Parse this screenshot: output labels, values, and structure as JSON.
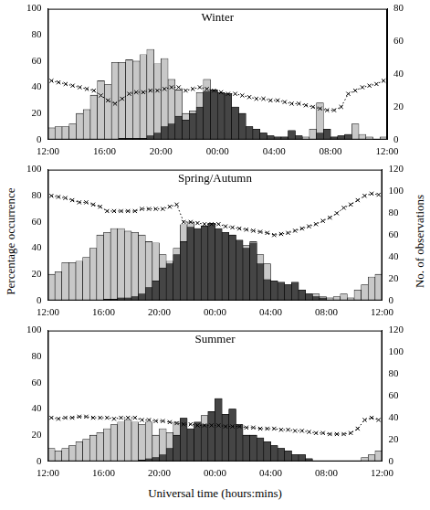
{
  "figure": {
    "ylabel": "Percentage occurrence",
    "y2label": "No. of observations",
    "xlabel": "Universal time (hours:mins)"
  },
  "chart_data": [
    {
      "type": "bar",
      "title": "Winter",
      "grid": false,
      "x": [
        12.25,
        12.75,
        13.25,
        13.75,
        14.25,
        14.75,
        15.25,
        15.75,
        16.25,
        16.75,
        17.25,
        17.75,
        18.25,
        18.75,
        19.25,
        19.75,
        20.25,
        20.75,
        21.25,
        21.75,
        22.25,
        22.75,
        23.25,
        23.75,
        24.25,
        24.75,
        25.25,
        25.75,
        26.25,
        26.75,
        27.25,
        27.75,
        28.25,
        28.75,
        29.25,
        29.75,
        30.25,
        30.75,
        31.25,
        31.75,
        32.25,
        32.75,
        33.25,
        33.75,
        34.25,
        34.75,
        35.25,
        35.75
      ],
      "xlim": [
        12,
        36
      ],
      "xticks": [
        {
          "value": 12,
          "label": "12:00"
        },
        {
          "value": 16,
          "label": "16:00"
        },
        {
          "value": 20,
          "label": "20:00"
        },
        {
          "value": 24,
          "label": "00:00"
        },
        {
          "value": 28,
          "label": "04:00"
        },
        {
          "value": 32,
          "label": "08:00"
        },
        {
          "value": 36,
          "label": "12:00"
        }
      ],
      "ylim": [
        0,
        100
      ],
      "yticks": [
        0,
        20,
        40,
        60,
        80,
        100
      ],
      "y2lim": [
        0,
        80
      ],
      "y2ticks": [
        0,
        20,
        40,
        60,
        80
      ],
      "series": [
        {
          "type": "line",
          "axis": "y2",
          "color": "#000000",
          "marker": "crossRot",
          "line_style": "dotted",
          "values": [
            36,
            35,
            34,
            33,
            32,
            31,
            30,
            27,
            24,
            22,
            25,
            28,
            29,
            29,
            30,
            30,
            31,
            32,
            32,
            30,
            31,
            32,
            31,
            30,
            29,
            28,
            28,
            27,
            26,
            25,
            25,
            24,
            24,
            23,
            22,
            22,
            21,
            20,
            19,
            18,
            18,
            20,
            28,
            30,
            32,
            33,
            34,
            36
          ]
        },
        {
          "type": "bar",
          "color": "#454545",
          "values": [
            0,
            0,
            0,
            0,
            0,
            0,
            0,
            0,
            0,
            0,
            1,
            1,
            1,
            1,
            3,
            5,
            10,
            12,
            18,
            15,
            20,
            25,
            37,
            38,
            36,
            35,
            25,
            20,
            10,
            8,
            5,
            3,
            2,
            2,
            7,
            3,
            0,
            0,
            5,
            8,
            2,
            3,
            4,
            0,
            0,
            0,
            0,
            0
          ]
        },
        {
          "type": "bar",
          "color": "#c8c8c8",
          "values": [
            9,
            10,
            10,
            12,
            20,
            23,
            34,
            45,
            42,
            59,
            59,
            61,
            60,
            65,
            69,
            58,
            62,
            46,
            38,
            20,
            22,
            36,
            46,
            38,
            36,
            35,
            25,
            20,
            10,
            8,
            5,
            3,
            2,
            2,
            7,
            3,
            2,
            8,
            28,
            8,
            2,
            3,
            4,
            12,
            4,
            2,
            0,
            2
          ]
        }
      ]
    },
    {
      "type": "bar",
      "title": "Spring/Autumn",
      "grid": false,
      "x": [
        12.25,
        12.75,
        13.25,
        13.75,
        14.25,
        14.75,
        15.25,
        15.75,
        16.25,
        16.75,
        17.25,
        17.75,
        18.25,
        18.75,
        19.25,
        19.75,
        20.25,
        20.75,
        21.25,
        21.75,
        22.25,
        22.75,
        23.25,
        23.75,
        24.25,
        24.75,
        25.25,
        25.75,
        26.25,
        26.75,
        27.25,
        27.75,
        28.25,
        28.75,
        29.25,
        29.75,
        30.25,
        30.75,
        31.25,
        31.75,
        32.25,
        32.75,
        33.25,
        33.75,
        34.25,
        34.75,
        35.25,
        35.75
      ],
      "xlim": [
        12,
        36
      ],
      "xticks": [
        {
          "value": 12,
          "label": "12:00"
        },
        {
          "value": 16,
          "label": "16:00"
        },
        {
          "value": 20,
          "label": "20:00"
        },
        {
          "value": 24,
          "label": "00:00"
        },
        {
          "value": 28,
          "label": "04:00"
        },
        {
          "value": 32,
          "label": "08:00"
        },
        {
          "value": 36,
          "label": "12:00"
        }
      ],
      "ylim": [
        0,
        100
      ],
      "yticks": [
        0,
        20,
        40,
        60,
        80,
        100
      ],
      "y2lim": [
        0,
        120
      ],
      "y2ticks": [
        0,
        20,
        40,
        60,
        80,
        100,
        120
      ],
      "series": [
        {
          "type": "line",
          "axis": "y2",
          "color": "#000000",
          "marker": "crossRot",
          "line_style": "dotted",
          "values": [
            96,
            95,
            94,
            92,
            90,
            90,
            88,
            86,
            82,
            82,
            82,
            82,
            82,
            84,
            84,
            84,
            84,
            86,
            88,
            72,
            72,
            71,
            70,
            70,
            70,
            68,
            67,
            66,
            65,
            64,
            63,
            62,
            60,
            61,
            62,
            64,
            66,
            68,
            70,
            73,
            76,
            80,
            85,
            88,
            92,
            96,
            98,
            97
          ]
        },
        {
          "type": "bar",
          "color": "#454545",
          "values": [
            0,
            0,
            0,
            0,
            0,
            0,
            0,
            0,
            1,
            1,
            2,
            2,
            3,
            5,
            10,
            15,
            25,
            28,
            35,
            45,
            56,
            55,
            57,
            59,
            55,
            52,
            50,
            46,
            40,
            44,
            28,
            16,
            15,
            14,
            12,
            14,
            8,
            5,
            3,
            2,
            0,
            0,
            0,
            0,
            0,
            0,
            0,
            0
          ]
        },
        {
          "type": "bar",
          "color": "#c8c8c8",
          "values": [
            20,
            22,
            29,
            29,
            30,
            33,
            40,
            50,
            52,
            55,
            55,
            53,
            52,
            50,
            45,
            44,
            35,
            30,
            40,
            58,
            60,
            55,
            57,
            59,
            55,
            52,
            50,
            46,
            42,
            45,
            35,
            28,
            15,
            14,
            12,
            14,
            8,
            5,
            5,
            3,
            2,
            3,
            5,
            2,
            8,
            12,
            18,
            20
          ]
        }
      ]
    },
    {
      "type": "bar",
      "title": "Summer",
      "grid": false,
      "x": [
        12.25,
        12.75,
        13.25,
        13.75,
        14.25,
        14.75,
        15.25,
        15.75,
        16.25,
        16.75,
        17.25,
        17.75,
        18.25,
        18.75,
        19.25,
        19.75,
        20.25,
        20.75,
        21.25,
        21.75,
        22.25,
        22.75,
        23.25,
        23.75,
        24.25,
        24.75,
        25.25,
        25.75,
        26.25,
        26.75,
        27.25,
        27.75,
        28.25,
        28.75,
        29.25,
        29.75,
        30.25,
        30.75,
        31.25,
        31.75,
        32.25,
        32.75,
        33.25,
        33.75,
        34.25,
        34.75,
        35.25,
        35.75
      ],
      "xlim": [
        12,
        36
      ],
      "xticks": [
        {
          "value": 12,
          "label": "12:00"
        },
        {
          "value": 16,
          "label": "16:00"
        },
        {
          "value": 20,
          "label": "20:00"
        },
        {
          "value": 24,
          "label": "00:00"
        },
        {
          "value": 28,
          "label": "04:00"
        },
        {
          "value": 32,
          "label": "08:00"
        },
        {
          "value": 36,
          "label": "12:00"
        }
      ],
      "ylim": [
        0,
        100
      ],
      "yticks": [
        0,
        20,
        40,
        60,
        80,
        100
      ],
      "y2lim": [
        0,
        120
      ],
      "y2ticks": [
        0,
        20,
        40,
        60,
        80,
        100,
        120
      ],
      "series": [
        {
          "type": "line",
          "axis": "y2",
          "color": "#000000",
          "marker": "crossRot",
          "line_style": "dotted",
          "values": [
            40,
            39,
            40,
            40,
            41,
            41,
            40,
            40,
            40,
            39,
            40,
            40,
            40,
            38,
            38,
            37,
            37,
            36,
            35,
            34,
            34,
            33,
            33,
            33,
            33,
            32,
            32,
            32,
            31,
            31,
            30,
            30,
            30,
            29,
            29,
            28,
            28,
            27,
            26,
            26,
            25,
            25,
            25,
            26,
            30,
            38,
            40,
            38
          ]
        },
        {
          "type": "bar",
          "color": "#454545",
          "values": [
            0,
            0,
            0,
            0,
            0,
            0,
            0,
            0,
            0,
            0,
            0,
            0,
            0,
            1,
            2,
            3,
            5,
            10,
            20,
            33,
            25,
            30,
            28,
            38,
            48,
            36,
            40,
            28,
            20,
            20,
            18,
            15,
            12,
            10,
            8,
            5,
            5,
            2,
            0,
            0,
            0,
            0,
            0,
            0,
            0,
            0,
            0,
            0
          ]
        },
        {
          "type": "bar",
          "color": "#c8c8c8",
          "values": [
            10,
            8,
            10,
            12,
            15,
            17,
            20,
            22,
            25,
            28,
            30,
            32,
            30,
            28,
            30,
            20,
            25,
            22,
            30,
            33,
            25,
            30,
            35,
            38,
            48,
            36,
            40,
            28,
            20,
            20,
            18,
            15,
            12,
            10,
            8,
            5,
            5,
            2,
            0,
            0,
            0,
            0,
            0,
            0,
            0,
            3,
            5,
            8
          ]
        }
      ]
    }
  ]
}
